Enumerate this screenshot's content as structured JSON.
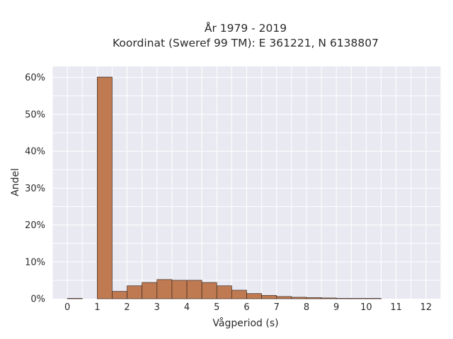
{
  "chart_data": {
    "type": "bar",
    "title": "År 1979 - 2019",
    "subtitle": "Koordinat (Sweref 99 TM): E 361221, N 6138807",
    "xlabel": "Vågperiod (s)",
    "ylabel": "Andel",
    "xlim": [
      -0.5,
      12.5
    ],
    "ylim": [
      0,
      0.63
    ],
    "xticks": [
      0,
      1,
      2,
      3,
      4,
      5,
      6,
      7,
      8,
      9,
      10,
      11,
      12
    ],
    "xtick_labels": [
      "0",
      "1",
      "2",
      "3",
      "4",
      "5",
      "6",
      "7",
      "8",
      "9",
      "10",
      "11",
      "12"
    ],
    "yticks": [
      0,
      0.1,
      0.2,
      0.3,
      0.4,
      0.5,
      0.6
    ],
    "ytick_labels": [
      "0%",
      "10%",
      "20%",
      "30%",
      "40%",
      "50%",
      "60%"
    ],
    "bin_width": 0.5,
    "bins": [
      0,
      0.5,
      1,
      1.5,
      2,
      2.5,
      3,
      3.5,
      4,
      4.5,
      5,
      5.5,
      6,
      6.5,
      7,
      7.5,
      8,
      8.5,
      9,
      9.5,
      10
    ],
    "values": [
      0.001,
      0,
      0.601,
      0.02,
      0.035,
      0.044,
      0.052,
      0.05,
      0.05,
      0.044,
      0.035,
      0.023,
      0.014,
      0.009,
      0.006,
      0.004,
      0.003,
      0.002,
      0.001,
      0.001,
      0.001
    ],
    "bar_color": "#c07a52",
    "bar_edge_color": "#3a2a20",
    "background_color": "#e9e9f1",
    "grid": true
  }
}
